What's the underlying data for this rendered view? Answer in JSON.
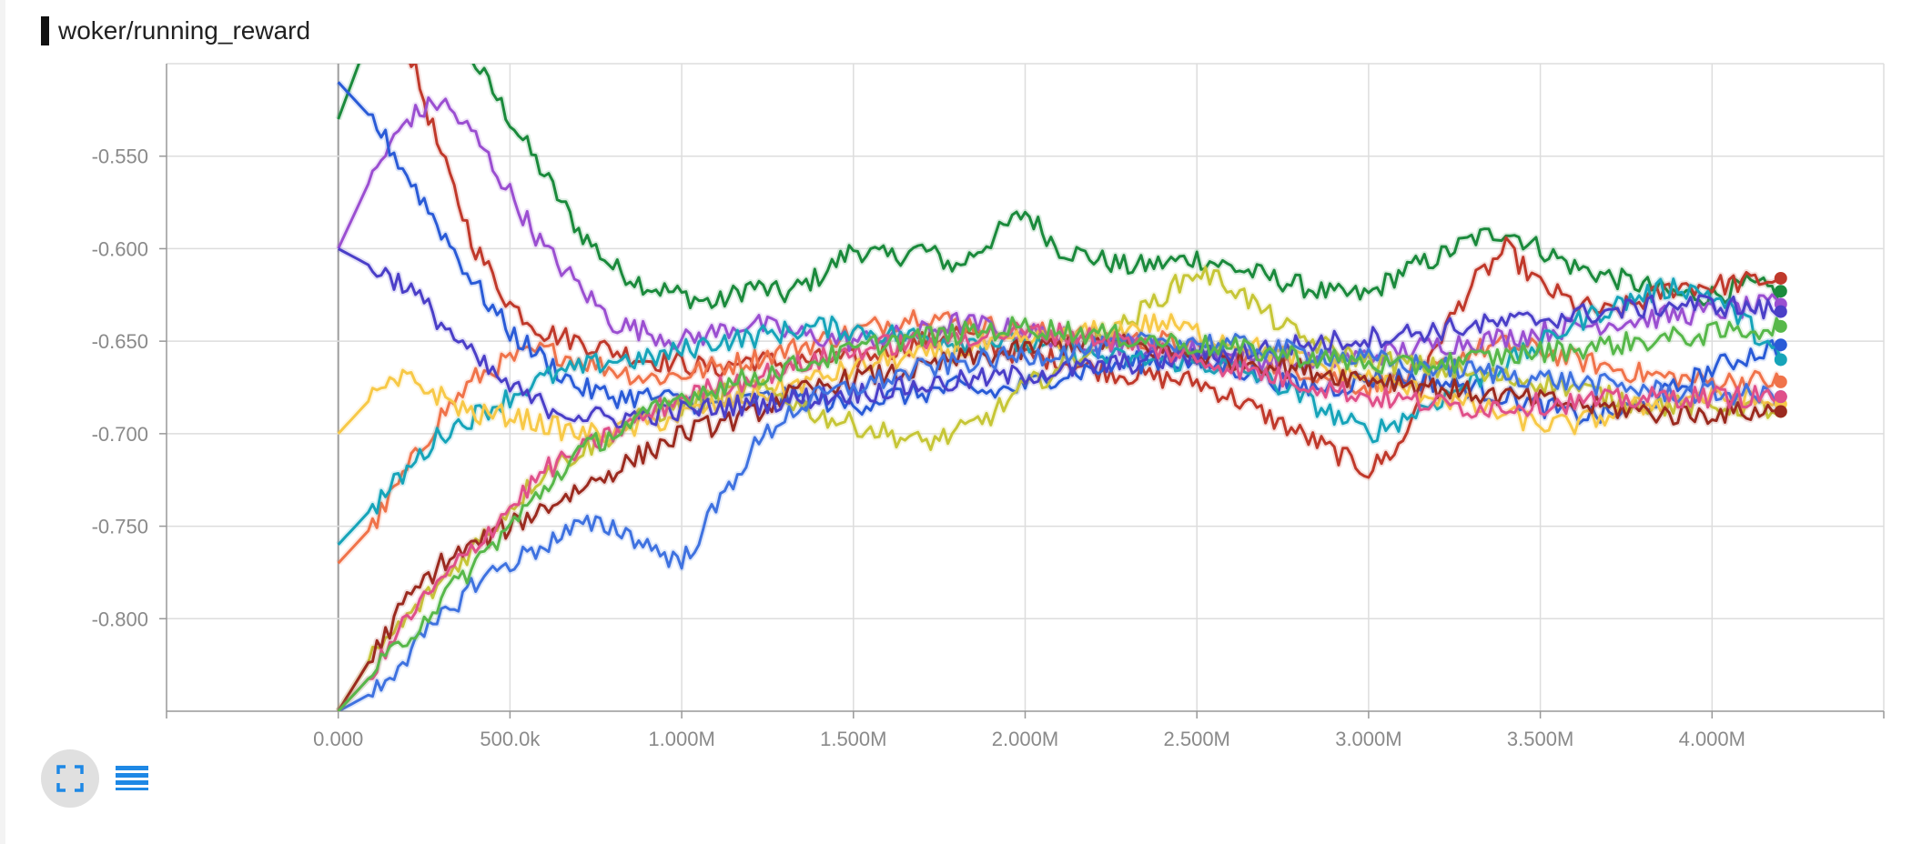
{
  "panel": {
    "title": "woker/running_reward"
  },
  "toolbar": {
    "expand_icon": "fullscreen-icon",
    "data_icon": "list-icon"
  },
  "colors": {
    "accent": "#1e88e5",
    "grid": "#dddddd",
    "axis": "#999999"
  },
  "chart_data": {
    "type": "line",
    "title": "woker/running_reward",
    "xlabel": "",
    "ylabel": "",
    "xlim": [
      -500000,
      4500000
    ],
    "ylim": [
      -0.85,
      -0.5
    ],
    "grid": true,
    "x_ticks": [
      0,
      500000,
      1000000,
      1500000,
      2000000,
      2500000,
      3000000,
      3500000,
      4000000
    ],
    "x_tick_labels": [
      "0.000",
      "500.0k",
      "1.000M",
      "1.500M",
      "2.000M",
      "2.500M",
      "3.000M",
      "3.500M",
      "4.000M"
    ],
    "y_ticks": [
      -0.8,
      -0.75,
      -0.7,
      -0.65,
      -0.6,
      -0.55
    ],
    "y_tick_labels": [
      "-0.800",
      "-0.750",
      "-0.700",
      "-0.650",
      "-0.600",
      "-0.550"
    ],
    "x": [
      0,
      100000,
      200000,
      300000,
      400000,
      500000,
      600000,
      700000,
      800000,
      900000,
      1000000,
      1100000,
      1200000,
      1300000,
      1400000,
      1500000,
      1600000,
      1700000,
      1800000,
      1900000,
      2000000,
      2100000,
      2200000,
      2300000,
      2400000,
      2500000,
      2600000,
      2700000,
      2800000,
      2900000,
      3000000,
      3100000,
      3200000,
      3300000,
      3400000,
      3500000,
      3600000,
      3700000,
      3800000,
      3900000,
      4000000,
      4100000,
      4200000
    ],
    "series": [
      {
        "color": "#1b8a3c",
        "values": [
          -0.53,
          -0.48,
          -0.46,
          -0.47,
          -0.5,
          -0.53,
          -0.56,
          -0.59,
          -0.61,
          -0.62,
          -0.625,
          -0.63,
          -0.62,
          -0.625,
          -0.615,
          -0.6,
          -0.605,
          -0.6,
          -0.61,
          -0.595,
          -0.58,
          -0.6,
          -0.605,
          -0.61,
          -0.608,
          -0.605,
          -0.61,
          -0.615,
          -0.62,
          -0.625,
          -0.625,
          -0.612,
          -0.605,
          -0.595,
          -0.59,
          -0.6,
          -0.61,
          -0.615,
          -0.62,
          -0.625,
          -0.625,
          -0.62,
          -0.623
        ]
      },
      {
        "color": "#c0392b",
        "values": [
          -0.48,
          -0.47,
          -0.49,
          -0.55,
          -0.6,
          -0.63,
          -0.645,
          -0.65,
          -0.655,
          -0.66,
          -0.662,
          -0.665,
          -0.66,
          -0.662,
          -0.66,
          -0.66,
          -0.655,
          -0.65,
          -0.645,
          -0.652,
          -0.658,
          -0.66,
          -0.665,
          -0.668,
          -0.67,
          -0.672,
          -0.68,
          -0.69,
          -0.7,
          -0.71,
          -0.72,
          -0.705,
          -0.65,
          -0.62,
          -0.6,
          -0.62,
          -0.63,
          -0.635,
          -0.628,
          -0.62,
          -0.62,
          -0.618,
          -0.616
        ]
      },
      {
        "color": "#f0734a",
        "values": [
          -0.77,
          -0.75,
          -0.72,
          -0.69,
          -0.67,
          -0.66,
          -0.655,
          -0.66,
          -0.665,
          -0.67,
          -0.668,
          -0.664,
          -0.66,
          -0.655,
          -0.65,
          -0.645,
          -0.64,
          -0.635,
          -0.64,
          -0.642,
          -0.645,
          -0.646,
          -0.648,
          -0.65,
          -0.65,
          -0.655,
          -0.66,
          -0.662,
          -0.665,
          -0.67,
          -0.675,
          -0.67,
          -0.665,
          -0.655,
          -0.652,
          -0.655,
          -0.66,
          -0.664,
          -0.668,
          -0.67,
          -0.672,
          -0.671,
          -0.672
        ]
      },
      {
        "color": "#9b4fd1",
        "values": [
          -0.6,
          -0.56,
          -0.53,
          -0.52,
          -0.54,
          -0.57,
          -0.6,
          -0.62,
          -0.64,
          -0.645,
          -0.65,
          -0.645,
          -0.64,
          -0.645,
          -0.648,
          -0.65,
          -0.648,
          -0.645,
          -0.64,
          -0.642,
          -0.645,
          -0.648,
          -0.65,
          -0.652,
          -0.655,
          -0.655,
          -0.658,
          -0.66,
          -0.662,
          -0.66,
          -0.658,
          -0.655,
          -0.652,
          -0.65,
          -0.648,
          -0.645,
          -0.642,
          -0.64,
          -0.638,
          -0.636,
          -0.634,
          -0.632,
          -0.63
        ]
      },
      {
        "color": "#2a5bd7",
        "values": [
          -0.51,
          -0.53,
          -0.56,
          -0.59,
          -0.62,
          -0.645,
          -0.66,
          -0.675,
          -0.68,
          -0.68,
          -0.682,
          -0.685,
          -0.682,
          -0.68,
          -0.682,
          -0.685,
          -0.68,
          -0.678,
          -0.675,
          -0.678,
          -0.674,
          -0.668,
          -0.665,
          -0.662,
          -0.66,
          -0.662,
          -0.664,
          -0.67,
          -0.675,
          -0.675,
          -0.67,
          -0.67,
          -0.672,
          -0.675,
          -0.68,
          -0.685,
          -0.69,
          -0.69,
          -0.685,
          -0.675,
          -0.665,
          -0.658,
          -0.652
        ]
      },
      {
        "color": "#16a4b9",
        "values": [
          -0.76,
          -0.74,
          -0.72,
          -0.7,
          -0.69,
          -0.68,
          -0.67,
          -0.665,
          -0.66,
          -0.66,
          -0.655,
          -0.65,
          -0.648,
          -0.645,
          -0.642,
          -0.644,
          -0.646,
          -0.648,
          -0.65,
          -0.65,
          -0.652,
          -0.655,
          -0.658,
          -0.66,
          -0.66,
          -0.662,
          -0.664,
          -0.67,
          -0.68,
          -0.69,
          -0.7,
          -0.692,
          -0.682,
          -0.672,
          -0.662,
          -0.652,
          -0.64,
          -0.632,
          -0.625,
          -0.62,
          -0.625,
          -0.64,
          -0.66
        ]
      },
      {
        "color": "#c6c637",
        "values": [
          -0.85,
          -0.82,
          -0.8,
          -0.78,
          -0.76,
          -0.74,
          -0.72,
          -0.71,
          -0.7,
          -0.69,
          -0.685,
          -0.68,
          -0.675,
          -0.68,
          -0.69,
          -0.695,
          -0.7,
          -0.705,
          -0.7,
          -0.69,
          -0.675,
          -0.665,
          -0.652,
          -0.64,
          -0.625,
          -0.612,
          -0.62,
          -0.635,
          -0.648,
          -0.655,
          -0.66,
          -0.662,
          -0.665,
          -0.668,
          -0.67,
          -0.672,
          -0.675,
          -0.68,
          -0.684,
          -0.685,
          -0.685,
          -0.685,
          -0.688
        ]
      },
      {
        "color": "#f7c948",
        "values": [
          -0.7,
          -0.68,
          -0.67,
          -0.68,
          -0.69,
          -0.69,
          -0.695,
          -0.7,
          -0.7,
          -0.695,
          -0.69,
          -0.685,
          -0.68,
          -0.675,
          -0.67,
          -0.665,
          -0.66,
          -0.658,
          -0.655,
          -0.652,
          -0.65,
          -0.648,
          -0.645,
          -0.642,
          -0.64,
          -0.645,
          -0.65,
          -0.655,
          -0.66,
          -0.665,
          -0.67,
          -0.675,
          -0.68,
          -0.685,
          -0.69,
          -0.695,
          -0.695,
          -0.69,
          -0.685,
          -0.68,
          -0.68,
          -0.682,
          -0.684
        ]
      },
      {
        "color": "#9b2a1f",
        "values": [
          -0.85,
          -0.82,
          -0.79,
          -0.77,
          -0.76,
          -0.75,
          -0.74,
          -0.73,
          -0.72,
          -0.71,
          -0.7,
          -0.695,
          -0.69,
          -0.68,
          -0.675,
          -0.67,
          -0.668,
          -0.665,
          -0.66,
          -0.658,
          -0.655,
          -0.652,
          -0.65,
          -0.652,
          -0.655,
          -0.658,
          -0.66,
          -0.662,
          -0.665,
          -0.668,
          -0.67,
          -0.672,
          -0.675,
          -0.678,
          -0.68,
          -0.682,
          -0.684,
          -0.686,
          -0.688,
          -0.69,
          -0.689,
          -0.688,
          -0.688
        ]
      },
      {
        "color": "#4b3fc8",
        "values": [
          -0.6,
          -0.61,
          -0.62,
          -0.64,
          -0.66,
          -0.675,
          -0.685,
          -0.69,
          -0.692,
          -0.69,
          -0.688,
          -0.686,
          -0.684,
          -0.682,
          -0.68,
          -0.678,
          -0.676,
          -0.674,
          -0.672,
          -0.67,
          -0.668,
          -0.666,
          -0.664,
          -0.662,
          -0.66,
          -0.658,
          -0.656,
          -0.654,
          -0.652,
          -0.65,
          -0.648,
          -0.646,
          -0.644,
          -0.642,
          -0.64,
          -0.638,
          -0.636,
          -0.634,
          -0.632,
          -0.63,
          -0.63,
          -0.632,
          -0.634
        ]
      },
      {
        "color": "#3f72e0",
        "values": [
          -0.85,
          -0.84,
          -0.82,
          -0.8,
          -0.78,
          -0.77,
          -0.76,
          -0.75,
          -0.75,
          -0.76,
          -0.77,
          -0.74,
          -0.71,
          -0.69,
          -0.68,
          -0.675,
          -0.67,
          -0.665,
          -0.662,
          -0.66,
          -0.658,
          -0.656,
          -0.654,
          -0.652,
          -0.65,
          -0.65,
          -0.652,
          -0.654,
          -0.656,
          -0.658,
          -0.66,
          -0.662,
          -0.664,
          -0.666,
          -0.668,
          -0.67,
          -0.672,
          -0.674,
          -0.676,
          -0.678,
          -0.678,
          -0.679,
          -0.68
        ]
      },
      {
        "color": "#e0508a",
        "values": [
          -0.85,
          -0.83,
          -0.8,
          -0.78,
          -0.76,
          -0.74,
          -0.72,
          -0.71,
          -0.7,
          -0.69,
          -0.68,
          -0.675,
          -0.67,
          -0.665,
          -0.66,
          -0.655,
          -0.652,
          -0.65,
          -0.648,
          -0.646,
          -0.645,
          -0.646,
          -0.648,
          -0.65,
          -0.655,
          -0.66,
          -0.664,
          -0.668,
          -0.672,
          -0.676,
          -0.68,
          -0.682,
          -0.684,
          -0.686,
          -0.685,
          -0.684,
          -0.683,
          -0.682,
          -0.681,
          -0.68,
          -0.68,
          -0.68,
          -0.68
        ]
      },
      {
        "color": "#57b84a",
        "values": [
          -0.85,
          -0.83,
          -0.81,
          -0.79,
          -0.77,
          -0.75,
          -0.73,
          -0.71,
          -0.7,
          -0.69,
          -0.68,
          -0.675,
          -0.67,
          -0.665,
          -0.66,
          -0.655,
          -0.65,
          -0.648,
          -0.646,
          -0.644,
          -0.642,
          -0.644,
          -0.646,
          -0.648,
          -0.65,
          -0.652,
          -0.654,
          -0.656,
          -0.658,
          -0.66,
          -0.662,
          -0.664,
          -0.662,
          -0.66,
          -0.658,
          -0.656,
          -0.654,
          -0.652,
          -0.65,
          -0.648,
          -0.646,
          -0.644,
          -0.642
        ]
      }
    ]
  }
}
